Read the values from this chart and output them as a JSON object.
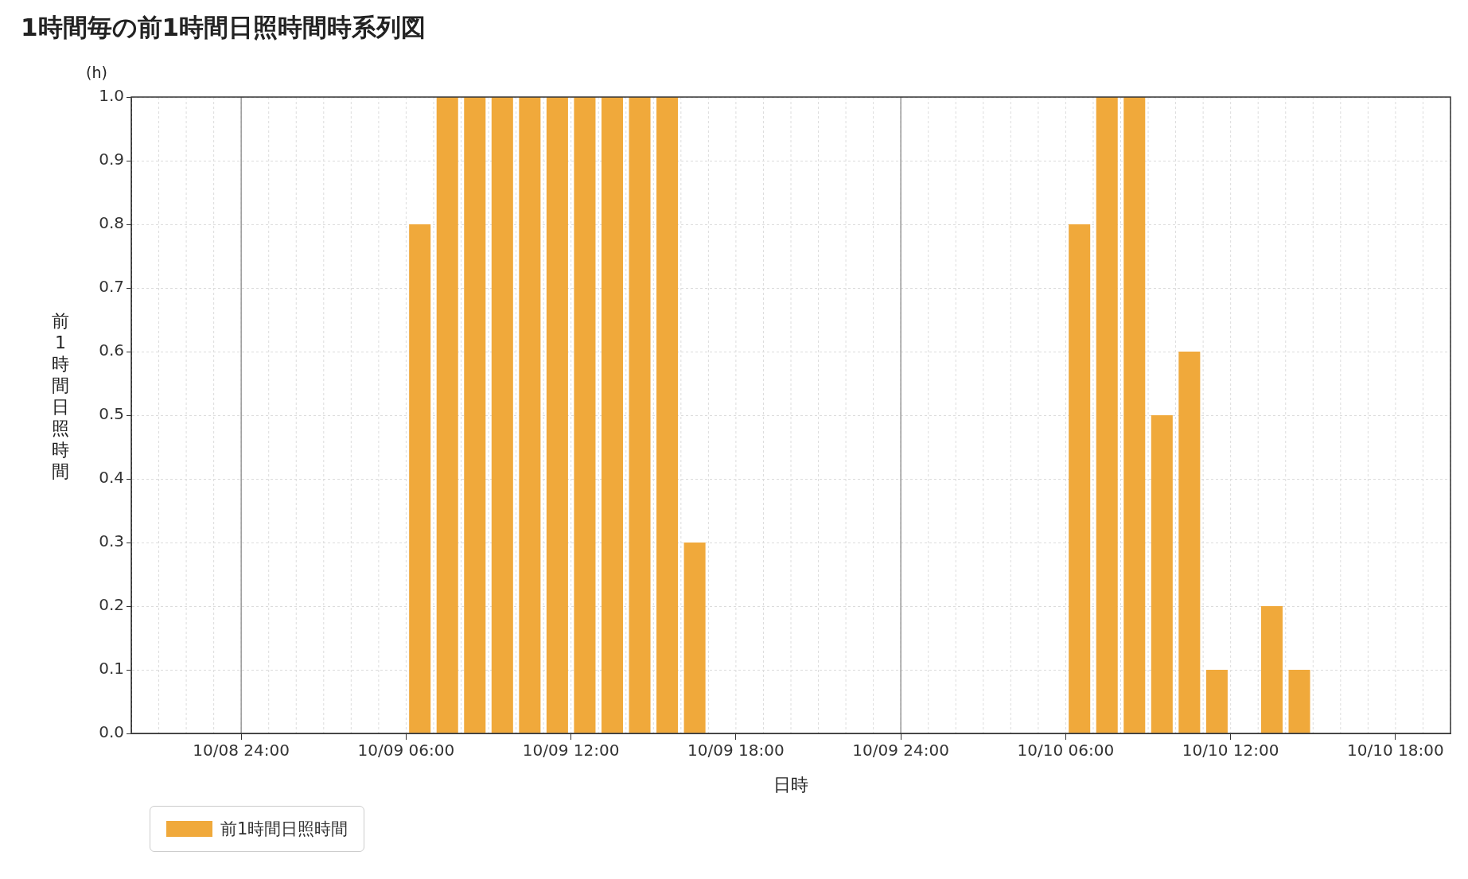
{
  "chart_data": {
    "type": "bar",
    "title": "1時間毎の前1時間日照時間時系列図",
    "xlabel": "日時",
    "ylabel": "前1時間日照時間",
    "annotations": [
      "(h)"
    ],
    "x": [
      "--10-09T06:30",
      "--10-09T07:30",
      "--10-09T08:30",
      "--10-09T09:30",
      "--10-09T10:30",
      "--10-09T11:30",
      "--10-09T12:30",
      "--10-09T13:30",
      "--10-09T14:30",
      "--10-09T15:30",
      "--10-09T16:30",
      "--10-10T06:30",
      "--10-10T07:30",
      "--10-10T08:30",
      "--10-10T09:30",
      "--10-10T10:30",
      "--10-10T11:30",
      "--10-10T13:30",
      "--10-10T14:30"
    ],
    "series": [
      {
        "name": "前1時間日照時間",
        "color": "#f0a93b",
        "values": [
          0.8,
          1.0,
          1.0,
          1.0,
          1.0,
          1.0,
          1.0,
          1.0,
          1.0,
          1.0,
          0.3,
          0.8,
          1.0,
          1.0,
          0.5,
          0.6,
          0.1,
          0.2,
          0.1
        ]
      }
    ],
    "xlim": [
      "--10-08T20:00",
      "--10-10T20:00"
    ],
    "xticks": [
      {
        "value": "--10-09T00:00",
        "label": "10/08 24:00"
      },
      {
        "value": "--10-09T06:00",
        "label": "10/09 06:00"
      },
      {
        "value": "--10-09T12:00",
        "label": "10/09 12:00"
      },
      {
        "value": "--10-09T18:00",
        "label": "10/09 18:00"
      },
      {
        "value": "--10-10T00:00",
        "label": "10/09 24:00"
      },
      {
        "value": "--10-10T06:00",
        "label": "10/10 06:00"
      },
      {
        "value": "--10-10T12:00",
        "label": "10/10 12:00"
      },
      {
        "value": "--10-10T18:00",
        "label": "10/10 18:00"
      }
    ],
    "ylim": [
      0,
      1
    ],
    "yticks": [
      {
        "value": 0,
        "label": "0.0"
      },
      {
        "value": 0.1,
        "label": "0.1"
      },
      {
        "value": 0.2,
        "label": "0.2"
      },
      {
        "value": 0.3,
        "label": "0.3"
      },
      {
        "value": 0.4,
        "label": "0.4"
      },
      {
        "value": 0.5,
        "label": "0.5"
      },
      {
        "value": 0.6,
        "label": "0.6"
      },
      {
        "value": 0.7,
        "label": "0.7"
      },
      {
        "value": 0.8,
        "label": "0.8"
      },
      {
        "value": 0.9,
        "label": "0.9"
      },
      {
        "value": 1,
        "label": "1.0"
      }
    ],
    "grid": true,
    "legend": "bottom left"
  }
}
